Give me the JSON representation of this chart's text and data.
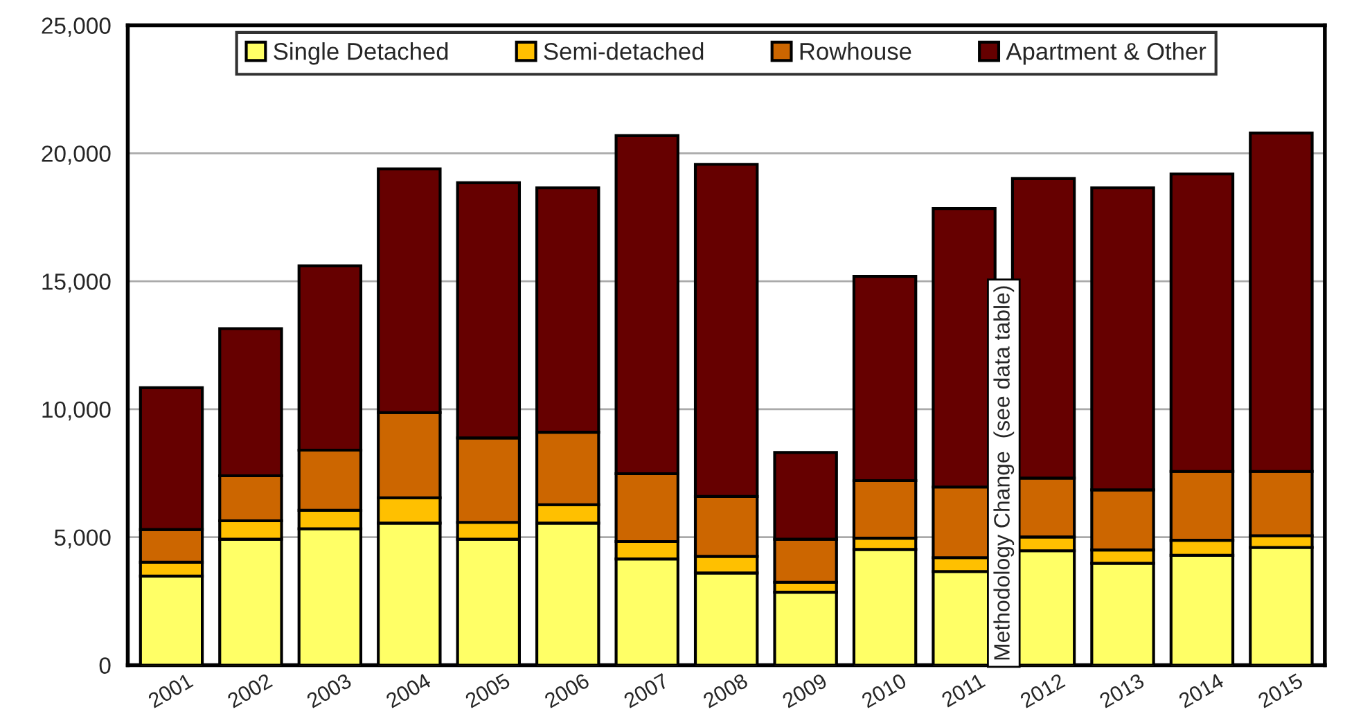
{
  "chart_data": {
    "type": "bar",
    "stacked": true,
    "categories": [
      "2001",
      "2002",
      "2003",
      "2004",
      "2005",
      "2006",
      "2007",
      "2008",
      "2009",
      "2010",
      "2011",
      "2012",
      "2013",
      "2014",
      "2015"
    ],
    "series": [
      {
        "name": "Single Detached",
        "color": "#ffff66",
        "values": [
          3480,
          4920,
          5330,
          5550,
          4920,
          5550,
          4150,
          3600,
          2850,
          4520,
          3660,
          4470,
          3980,
          4290,
          4600
        ]
      },
      {
        "name": "Semi-detached",
        "color": "#ffc000",
        "values": [
          540,
          720,
          720,
          990,
          660,
          720,
          680,
          650,
          390,
          440,
          540,
          540,
          520,
          590,
          460
        ]
      },
      {
        "name": "Rowhouse",
        "color": "#cc6600",
        "values": [
          1280,
          1760,
          2350,
          3330,
          3300,
          2830,
          2650,
          2340,
          1680,
          2250,
          2760,
          2300,
          2350,
          2690,
          2510
        ]
      },
      {
        "name": "Apartment & Other",
        "color": "#660000",
        "values": [
          5540,
          5750,
          7200,
          9520,
          9970,
          9550,
          13210,
          12980,
          3390,
          7980,
          10880,
          11700,
          11800,
          11620,
          13220
        ]
      }
    ],
    "ylim": [
      0,
      25000
    ],
    "yticks": [
      {
        "value": 0,
        "label": "0"
      },
      {
        "value": 5000,
        "label": "5,000"
      },
      {
        "value": 10000,
        "label": "10,000"
      },
      {
        "value": 15000,
        "label": "15,000"
      },
      {
        "value": 20000,
        "label": "20,000"
      },
      {
        "value": 25000,
        "label": "25,000"
      }
    ],
    "grid": "y",
    "legend": "top",
    "annotations": [
      {
        "text": "Methodology Change  (see data table)",
        "x": "2011",
        "y": 0
      }
    ]
  }
}
